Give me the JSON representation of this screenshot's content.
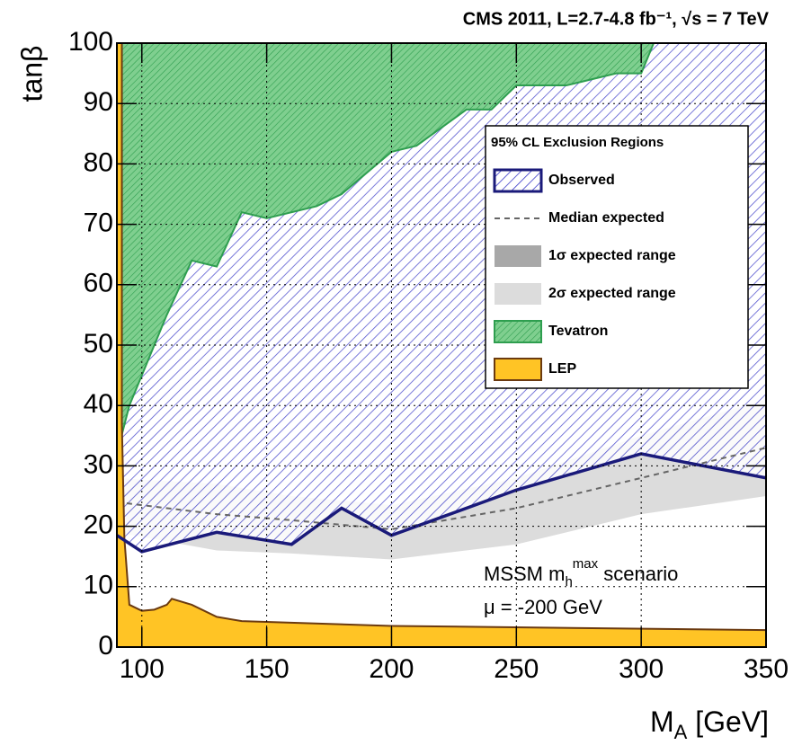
{
  "chart_data": {
    "type": "exclusion",
    "title": "CMS 2011, L=2.7-4.8 fb⁻¹, √s = 7 TeV",
    "x_label": {
      "main": "M",
      "sub": "A",
      "rest": " [GeV]"
    },
    "y_label": "tanβ",
    "xlim": [
      90,
      350
    ],
    "ylim": [
      0,
      100
    ],
    "xticks": [
      100,
      150,
      200,
      250,
      300,
      350
    ],
    "yticks": [
      0,
      10,
      20,
      30,
      40,
      50,
      60,
      70,
      80,
      90,
      100
    ],
    "grid": true,
    "legend": {
      "title": "95% CL Exclusion Regions",
      "position": "upper right"
    },
    "annotations": [
      {
        "main": "MSSM m",
        "sub": "h",
        "sup": "max",
        "rest": " scenario"
      },
      {
        "text": "μ = -200 GeV"
      }
    ],
    "series": [
      {
        "name": "Observed",
        "kind": "hatch",
        "color": "#1a1a7a",
        "x": [
          90,
          100,
          130,
          160,
          180,
          200,
          250,
          300,
          350
        ],
        "values": [
          18.5,
          15.8,
          19,
          17,
          23,
          18.5,
          26,
          32,
          28
        ]
      },
      {
        "name": "Median expected",
        "kind": "dashed",
        "color": "#666666",
        "x": [
          90,
          130,
          160,
          200,
          250,
          300,
          350
        ],
        "values": [
          24,
          22,
          21,
          19.5,
          23,
          28,
          33
        ]
      },
      {
        "name": "1σ expected range",
        "kind": "band",
        "color": "#a8a8a8",
        "x": [
          90,
          130,
          160,
          200,
          250,
          300,
          350
        ],
        "upper": [
          26,
          25,
          22.5,
          21,
          25,
          31,
          37
        ],
        "lower": [
          21,
          19.5,
          18.5,
          17.5,
          20.5,
          25,
          29
        ]
      },
      {
        "name": "2σ expected range",
        "kind": "band",
        "color": "#dcdcdc",
        "x": [
          90,
          130,
          160,
          200,
          250,
          300,
          350
        ],
        "upper": [
          28,
          27,
          25,
          23.5,
          28,
          35,
          41
        ],
        "lower": [
          19,
          16,
          15.5,
          14.5,
          17,
          22,
          25
        ]
      },
      {
        "name": "Tevatron",
        "kind": "fill-up",
        "color": "#2e9e4f",
        "x": [
          90,
          95,
          100,
          110,
          120,
          130,
          140,
          150,
          170,
          180,
          200,
          210,
          230,
          240,
          250,
          270,
          290,
          300,
          305
        ],
        "values": [
          32,
          40,
          45,
          55,
          64,
          63,
          72,
          71,
          73,
          75,
          82,
          83,
          89,
          89,
          93,
          93,
          95,
          95,
          100
        ]
      },
      {
        "name": "LEP",
        "kind": "fill-down",
        "color": "#ffc425",
        "x": [
          90,
          92,
          92,
          93,
          95,
          100,
          105,
          110,
          112,
          120,
          130,
          140,
          200,
          350
        ],
        "values": [
          100,
          100,
          37,
          18,
          7,
          6,
          6.2,
          7,
          8,
          7,
          5,
          4.3,
          3.5,
          2.8
        ]
      }
    ]
  }
}
